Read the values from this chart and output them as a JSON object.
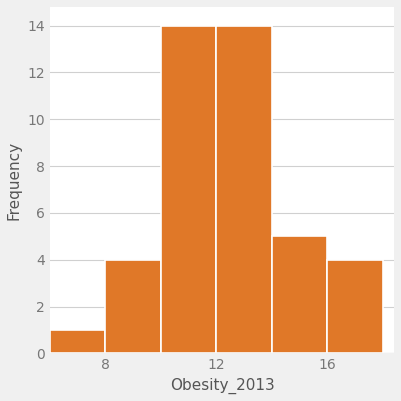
{
  "title": "",
  "xlabel": "Obesity_2013",
  "ylabel": "Frequency",
  "bar_color": "#E07828",
  "bar_edgecolor": "#FFFFFF",
  "figure_facecolor": "#F0F0F0",
  "plot_facecolor": "#FFFFFF",
  "grid_color": "#D0D0D0",
  "bin_edges": [
    6,
    8,
    10,
    12,
    14,
    16,
    18
  ],
  "bar_heights": [
    1,
    4,
    14,
    14,
    5,
    4
  ],
  "xticks": [
    8,
    12,
    16
  ],
  "yticks": [
    0,
    2,
    4,
    6,
    8,
    10,
    12,
    14
  ],
  "ylim": [
    0,
    14.8
  ],
  "xlim": [
    6,
    18.4
  ],
  "bar_linewidth": 1.2,
  "tick_labelsize": 10,
  "label_fontsize": 11
}
